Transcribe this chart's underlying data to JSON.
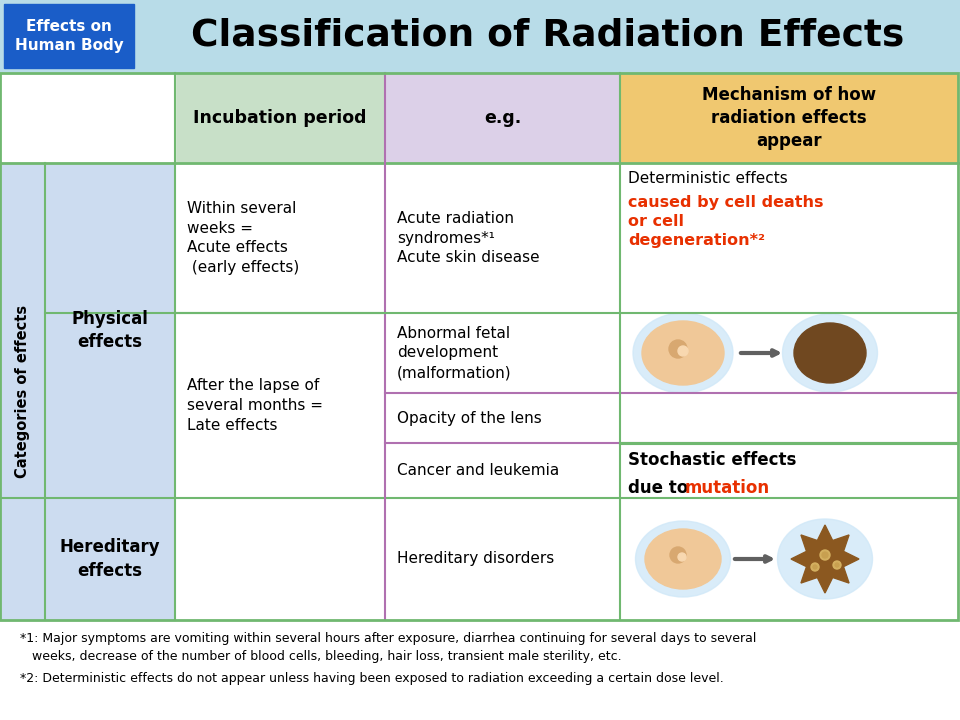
{
  "title": "Classification of Radiation Effects",
  "title_tag": "Effects on\nHuman Body",
  "title_tag_bg": "#1a5dc8",
  "title_bg": "#b8dce8",
  "header_inc_bg": "#c8e0c8",
  "header_eg_bg": "#dcd0e8",
  "header_mech_bg": "#f0c870",
  "row_left_bg": "#ccdcf0",
  "border_green": "#70b870",
  "border_purple": "#b070b0",
  "orange_red": "#e83000",
  "cell_healthy": "#f0c898",
  "cell_nucleus": "#d8a870",
  "cell_dead": "#704820",
  "cell_mutated": "#8b5820",
  "cell_halo": "#d0e8f8",
  "footnote1": "*1: Major symptoms are vomiting within several hours after exposure, diarrhea continuing for several days to several\n   weeks, decrease of the number of blood cells, bleeding, hair loss, transient male sterility, etc.",
  "footnote2": "*2: Deterministic effects do not appear unless having been exposed to radiation exceeding a certain dose level."
}
